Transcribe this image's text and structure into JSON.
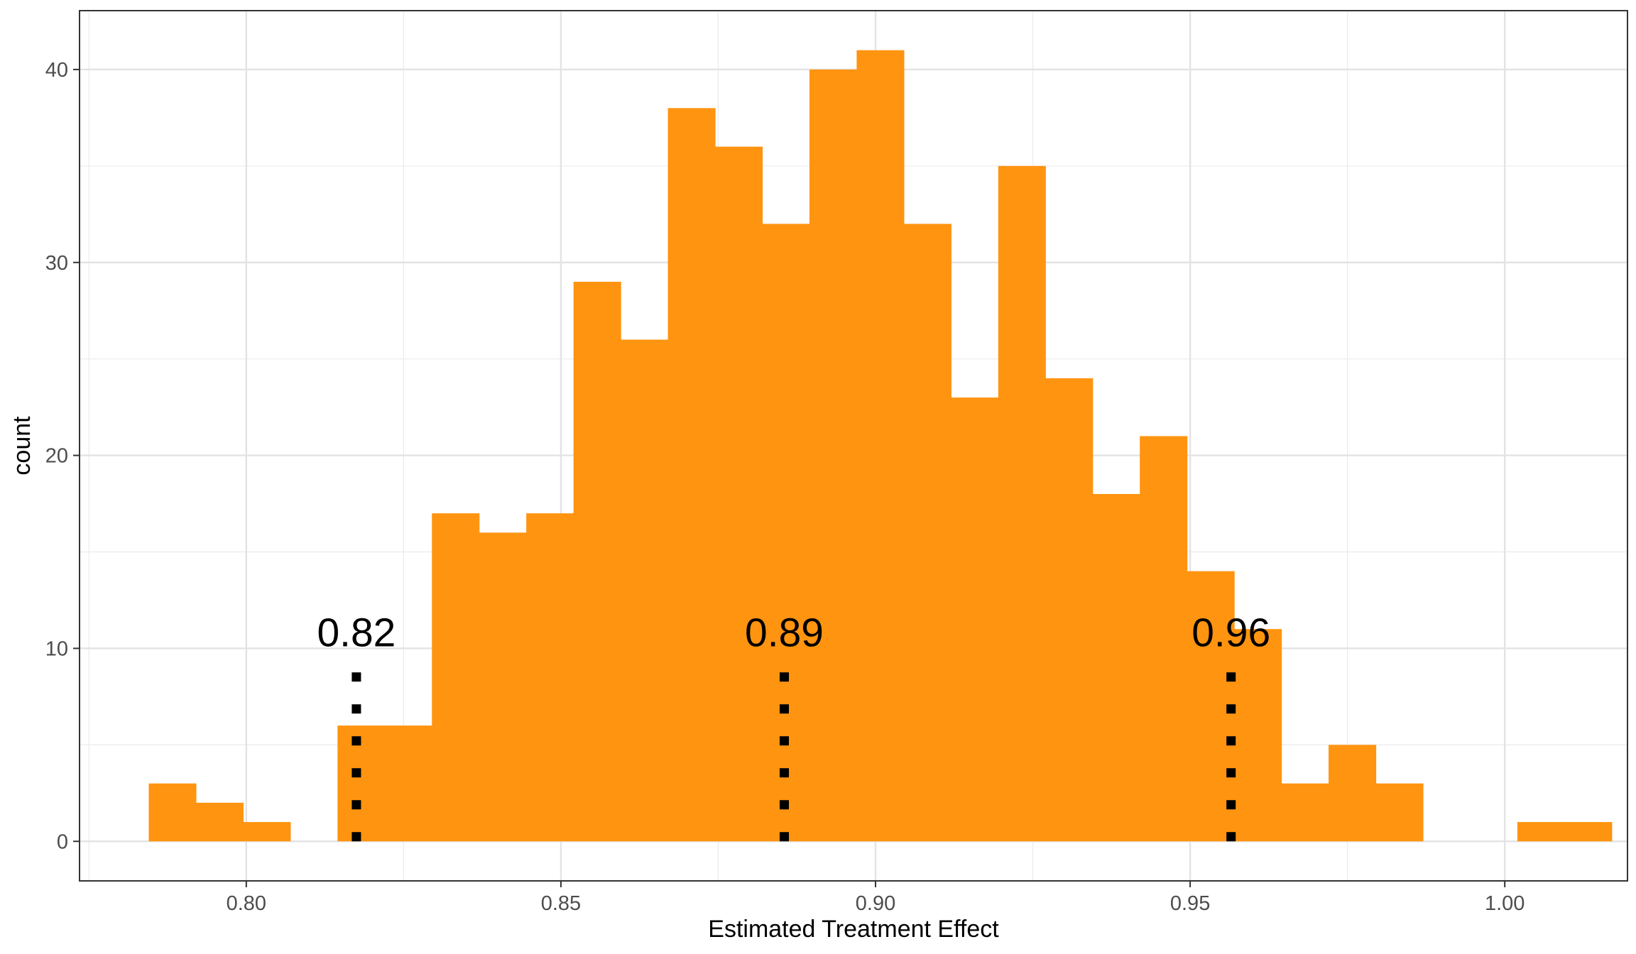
{
  "chart_data": {
    "type": "bar",
    "subtype": "histogram",
    "xlabel": "Estimated Treatment Effect",
    "ylabel": "count",
    "xlim": [
      0.7735,
      1.0195
    ],
    "ylim": [
      -2.05,
      43.05
    ],
    "x_ticks": [
      0.8,
      0.85,
      0.9,
      0.95,
      1.0
    ],
    "x_tick_labels": [
      "0.80",
      "0.85",
      "0.90",
      "0.95",
      "1.00"
    ],
    "y_ticks": [
      0,
      10,
      20,
      30,
      40
    ],
    "y_tick_labels": [
      "0",
      "10",
      "20",
      "30",
      "40"
    ],
    "grid": true,
    "bin_width": 0.0075,
    "first_bin_start": 0.7845,
    "counts": [
      3,
      2,
      1,
      0,
      6,
      6,
      17,
      16,
      17,
      29,
      26,
      38,
      36,
      32,
      40,
      41,
      32,
      23,
      35,
      24,
      18,
      21,
      14,
      11,
      3,
      5,
      3,
      0,
      0,
      1,
      1
    ],
    "bar_color": "#FF9410",
    "vlines": [
      {
        "x": 0.8175,
        "label": "0.82",
        "y_top": 9
      },
      {
        "x": 0.8855,
        "label": "0.89",
        "y_top": 9
      },
      {
        "x": 0.9565,
        "label": "0.96",
        "y_top": 9
      }
    ]
  }
}
